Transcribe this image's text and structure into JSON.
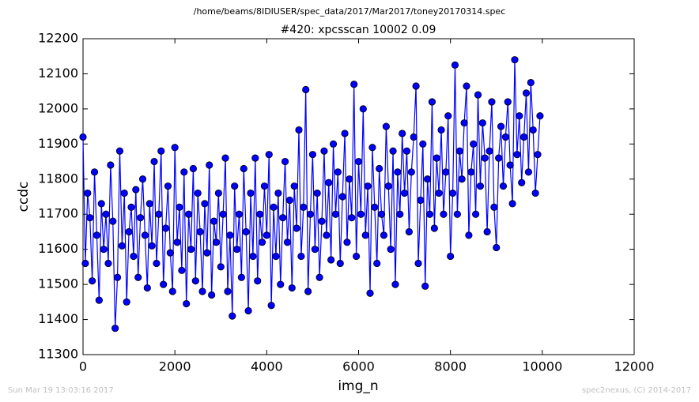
{
  "chart_data": {
    "type": "line",
    "suptitle": "/home/beams/8IDIUSER/spec_data/2017/Mar2017/toney20170314.spec",
    "title": "#420: xpcsscan 10002 0.09",
    "xlabel": "img_n",
    "ylabel": "ccdc",
    "footer_left": "Sun Mar 19 13:03:16 2017",
    "footer_right": "spec2nexus, (C) 2014-2017",
    "xlim": [
      0,
      12000
    ],
    "xticks": [
      0,
      2000,
      4000,
      6000,
      8000,
      10000,
      12000
    ],
    "ylim": [
      11300,
      12200
    ],
    "yticks": [
      11300,
      11400,
      11500,
      11600,
      11700,
      11800,
      11900,
      12000,
      12100,
      12200
    ],
    "x": [
      0,
      50,
      100,
      150,
      200,
      250,
      300,
      350,
      400,
      450,
      500,
      550,
      600,
      650,
      700,
      750,
      800,
      850,
      900,
      950,
      1000,
      1050,
      1100,
      1150,
      1200,
      1250,
      1300,
      1350,
      1400,
      1450,
      1500,
      1550,
      1600,
      1650,
      1700,
      1750,
      1800,
      1850,
      1900,
      1950,
      2000,
      2050,
      2100,
      2150,
      2200,
      2250,
      2300,
      2350,
      2400,
      2450,
      2500,
      2550,
      2600,
      2650,
      2700,
      2750,
      2800,
      2850,
      2900,
      2950,
      3000,
      3050,
      3100,
      3150,
      3200,
      3250,
      3300,
      3350,
      3400,
      3450,
      3500,
      3550,
      3600,
      3650,
      3700,
      3750,
      3800,
      3850,
      3900,
      3950,
      4000,
      4050,
      4100,
      4150,
      4200,
      4250,
      4300,
      4350,
      4400,
      4450,
      4500,
      4550,
      4600,
      4650,
      4700,
      4750,
      4800,
      4850,
      4900,
      4950,
      5000,
      5050,
      5100,
      5150,
      5200,
      5250,
      5300,
      5350,
      5400,
      5450,
      5500,
      5550,
      5600,
      5650,
      5700,
      5750,
      5800,
      5850,
      5900,
      5950,
      6000,
      6050,
      6100,
      6150,
      6200,
      6250,
      6300,
      6350,
      6400,
      6450,
      6500,
      6550,
      6600,
      6650,
      6700,
      6750,
      6800,
      6850,
      6900,
      6950,
      7000,
      7050,
      7100,
      7150,
      7200,
      7250,
      7300,
      7350,
      7400,
      7450,
      7500,
      7550,
      7600,
      7650,
      7700,
      7750,
      7800,
      7850,
      7900,
      7950,
      8000,
      8050,
      8100,
      8150,
      8200,
      8250,
      8300,
      8350,
      8400,
      8450,
      8500,
      8550,
      8600,
      8650,
      8700,
      8750,
      8800,
      8850,
      8900,
      8950,
      9000,
      9050,
      9100,
      9150,
      9200,
      9250,
      9300,
      9350,
      9400,
      9450,
      9500,
      9550,
      9600,
      9650,
      9700,
      9750,
      9800,
      9850,
      9900,
      9950
    ],
    "series": [
      {
        "name": "ccdc",
        "color": "#0000ff",
        "values": [
          11920,
          11560,
          11760,
          11690,
          11510,
          11820,
          11640,
          11455,
          11730,
          11600,
          11700,
          11560,
          11840,
          11680,
          11375,
          11520,
          11880,
          11610,
          11760,
          11450,
          11650,
          11720,
          11580,
          11770,
          11520,
          11690,
          11800,
          11640,
          11490,
          11730,
          11610,
          11850,
          11560,
          11700,
          11880,
          11500,
          11660,
          11780,
          11590,
          11480,
          11890,
          11620,
          11720,
          11540,
          11820,
          11445,
          11700,
          11600,
          11830,
          11510,
          11760,
          11650,
          11480,
          11730,
          11590,
          11840,
          11470,
          11680,
          11620,
          11760,
          11550,
          11700,
          11860,
          11480,
          11640,
          11410,
          11780,
          11600,
          11700,
          11520,
          11830,
          11650,
          11425,
          11760,
          11580,
          11860,
          11510,
          11700,
          11620,
          11780,
          11640,
          11870,
          11440,
          11720,
          11580,
          11760,
          11500,
          11690,
          11850,
          11620,
          11740,
          11490,
          11780,
          11660,
          11940,
          11580,
          11720,
          12055,
          11480,
          11700,
          11870,
          11600,
          11760,
          11520,
          11680,
          11880,
          11640,
          11790,
          11570,
          11900,
          11700,
          11820,
          11560,
          11750,
          11930,
          11620,
          11800,
          11690,
          12070,
          11580,
          11850,
          11700,
          12000,
          11640,
          11780,
          11475,
          11890,
          11720,
          11560,
          11830,
          11700,
          11640,
          11950,
          11780,
          11600,
          11880,
          11500,
          11820,
          11700,
          11930,
          11760,
          11880,
          11650,
          11820,
          11920,
          12065,
          11560,
          11740,
          11900,
          11495,
          11800,
          11700,
          12020,
          11660,
          11860,
          11760,
          11940,
          11700,
          11820,
          11980,
          11580,
          11760,
          12125,
          11700,
          11880,
          11800,
          11960,
          12065,
          11640,
          11820,
          11900,
          11700,
          12040,
          11780,
          11960,
          11860,
          11650,
          11880,
          12020,
          11720,
          11605,
          11860,
          11950,
          11780,
          11920,
          12020,
          11840,
          11730,
          12140,
          11870,
          11980,
          11790,
          11920,
          12045,
          11820,
          12075,
          11940,
          11760,
          11870,
          11980
        ]
      }
    ]
  }
}
